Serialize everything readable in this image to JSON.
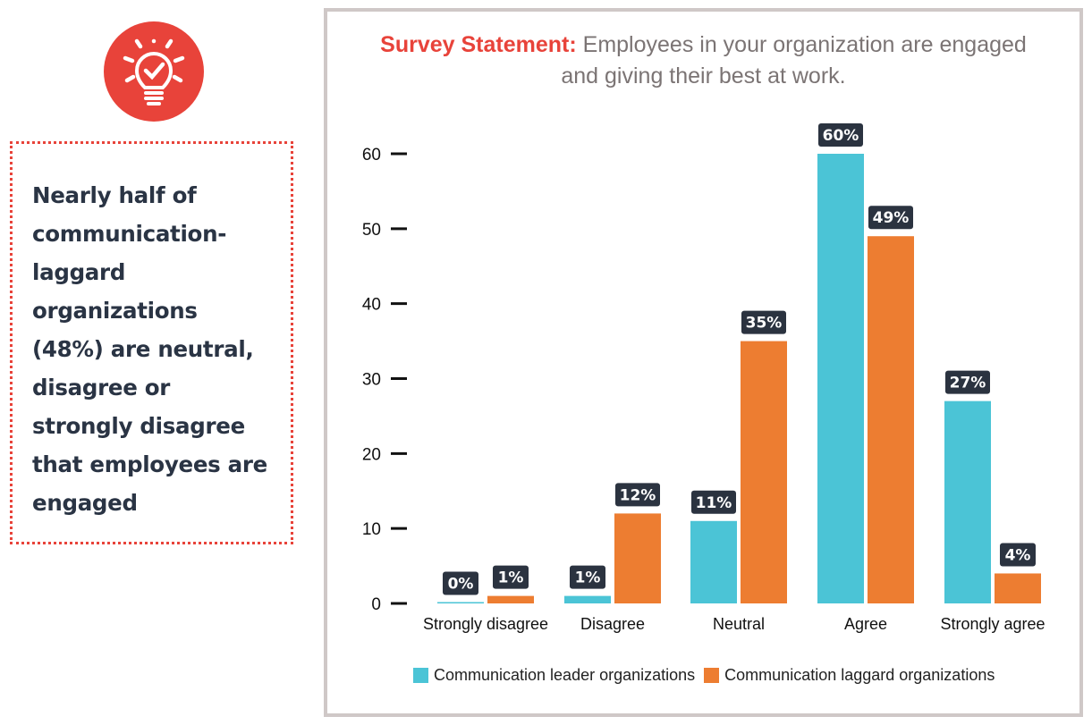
{
  "icon": {
    "name": "lightbulb-check-icon",
    "background": "#e8433a"
  },
  "callout": {
    "text_lines": [
      "Nearly half of",
      "communication-",
      "laggard",
      "organizations",
      "(48%) are neutral,",
      "disagree or",
      "strongly disagree",
      "that employees are",
      "engaged"
    ],
    "border_color": "#e8433a"
  },
  "chart_data": {
    "type": "bar",
    "title_lead": "Survey Statement:",
    "title": "Employees in your organization are engaged and giving their best at work.",
    "title_lines": [
      "Employees in your organization are engaged",
      "and giving their best at work."
    ],
    "xlabel": "",
    "ylabel": "",
    "categories": [
      "Strongly disagree",
      "Disagree",
      "Neutral",
      "Agree",
      "Strongly agree"
    ],
    "series": [
      {
        "name": "Communication leader organizations",
        "color": "#4bc4d6",
        "values": [
          0,
          1,
          11,
          60,
          27
        ],
        "labels": [
          "0%",
          "1%",
          "11%",
          "60%",
          "27%"
        ]
      },
      {
        "name": "Communication laggard organizations",
        "color": "#ed7d31",
        "values": [
          1,
          12,
          35,
          49,
          4
        ],
        "labels": [
          "1%",
          "12%",
          "35%",
          "49%",
          "4%"
        ]
      }
    ],
    "yticks": [
      0,
      10,
      20,
      30,
      40,
      50,
      60
    ],
    "ylim": [
      0,
      60
    ],
    "grid": false,
    "legend_position": "bottom",
    "label_bg": "#2b3340",
    "title_lead_color": "#e8433a"
  }
}
